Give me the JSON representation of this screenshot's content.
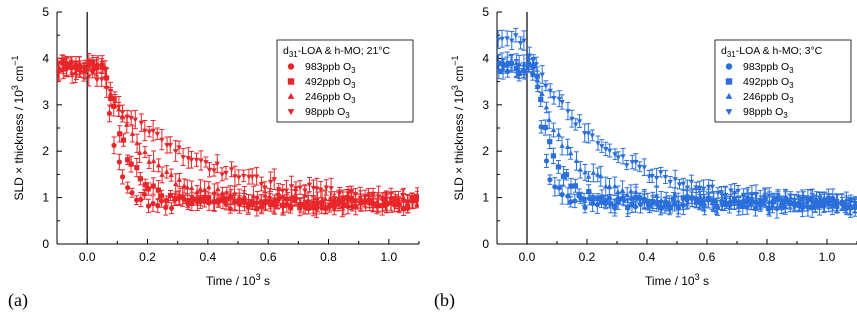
{
  "chart_data": [
    {
      "type": "scatter",
      "panel_label": "(a)",
      "xlabel": {
        "text": "Time / 10",
        "sup": "3",
        "tail": " s"
      },
      "ylabel": {
        "text": "SLD × thickness / 10",
        "sup": "3",
        "mid": " cm",
        "sup2": "−1"
      },
      "xlim": [
        -0.1,
        1.1
      ],
      "ylim": [
        0,
        5
      ],
      "xticks": [
        "0.0",
        "0.2",
        "0.4",
        "0.6",
        "0.8",
        "1.0"
      ],
      "xtick_values": [
        0,
        0.2,
        0.4,
        0.6,
        0.8,
        1.0
      ],
      "yticks": [
        "0",
        "1",
        "2",
        "3",
        "4",
        "5"
      ],
      "ytick_values": [
        0,
        1,
        2,
        3,
        4,
        5
      ],
      "vline_x": 0,
      "grid": false,
      "legend_position": "top-right",
      "legend_title": {
        "pre": "d",
        "sub": "31",
        "post": "-LOA & h-MO; 21°C"
      },
      "color": "#e8262a",
      "series": [
        {
          "name": "983ppb O",
          "sub": "3",
          "marker": "circle",
          "initial": 3.85,
          "final": 0.88,
          "tau": 0.035,
          "t0": 0.06,
          "noise": 0.12,
          "err": 0.13
        },
        {
          "name": "492ppb O",
          "sub": "3",
          "marker": "square",
          "initial": 3.85,
          "final": 0.88,
          "tau": 0.07,
          "t0": 0.06,
          "noise": 0.13,
          "err": 0.14
        },
        {
          "name": "246ppb O",
          "sub": "3",
          "marker": "triangle-up",
          "initial": 3.8,
          "final": 0.9,
          "tau": 0.13,
          "t0": 0.05,
          "noise": 0.13,
          "err": 0.15
        },
        {
          "name": "98ppb O",
          "sub": "3",
          "marker": "triangle-down",
          "initial": 3.75,
          "final": 0.9,
          "tau": 0.3,
          "t0": 0.02,
          "noise": 0.12,
          "err": 0.15
        }
      ]
    },
    {
      "type": "scatter",
      "panel_label": "(b)",
      "xlabel": {
        "text": "Time / 10",
        "sup": "3",
        "tail": " s"
      },
      "ylabel": {
        "text": "SLD × thickness / 10",
        "sup": "3",
        "mid": " cm",
        "sup2": "−1"
      },
      "xlim": [
        -0.1,
        1.1
      ],
      "ylim": [
        0,
        5
      ],
      "xticks": [
        "0.0",
        "0.2",
        "0.4",
        "0.6",
        "0.8",
        "1.0"
      ],
      "xtick_values": [
        0,
        0.2,
        0.4,
        0.6,
        0.8,
        1.0
      ],
      "yticks": [
        "0",
        "1",
        "2",
        "3",
        "4",
        "5"
      ],
      "ytick_values": [
        0,
        1,
        2,
        3,
        4,
        5
      ],
      "vline_x": 0,
      "grid": false,
      "legend_position": "top-right",
      "legend_title": {
        "pre": "d",
        "sub": "31",
        "post": "-LOA & h-MO; 3°C"
      },
      "color": "#2a6fdb",
      "series": [
        {
          "name": "983ppb O",
          "sub": "3",
          "marker": "circle",
          "initial": 3.8,
          "final": 0.88,
          "tau": 0.03,
          "t0": 0.03,
          "noise": 0.12,
          "err": 0.14
        },
        {
          "name": "492ppb O",
          "sub": "3",
          "marker": "square",
          "initial": 3.8,
          "final": 0.88,
          "tau": 0.06,
          "t0": 0.03,
          "noise": 0.12,
          "err": 0.15
        },
        {
          "name": "246ppb O",
          "sub": "3",
          "marker": "triangle-up",
          "initial": 3.85,
          "final": 0.9,
          "tau": 0.12,
          "t0": 0.02,
          "noise": 0.12,
          "err": 0.15
        },
        {
          "name": "98ppb O",
          "sub": "3",
          "marker": "triangle-down",
          "initial": 4.45,
          "final": 0.85,
          "tau": 0.26,
          "t0": -0.02,
          "noise": 0.1,
          "err": 0.14
        }
      ]
    }
  ]
}
